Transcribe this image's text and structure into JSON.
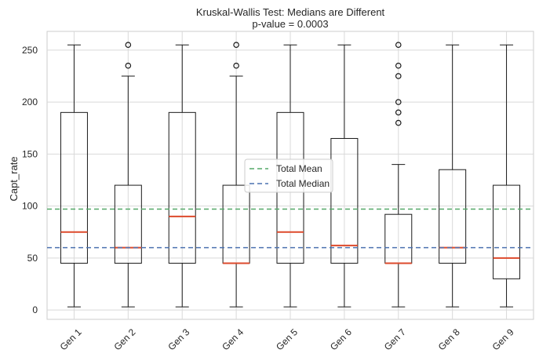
{
  "chart_data": {
    "type": "box",
    "title": "Kruskal-Wallis Test: Medians are Different",
    "subtitle": "p-value = 0.0003",
    "xlabel": "",
    "ylabel": "Capt_rate",
    "ylim": [
      -9,
      268
    ],
    "yticks": [
      0,
      50,
      100,
      150,
      200,
      250
    ],
    "categories": [
      "Gen 1",
      "Gen 2",
      "Gen 3",
      "Gen 4",
      "Gen 5",
      "Gen 6",
      "Gen 7",
      "Gen 8",
      "Gen 9"
    ],
    "boxes": [
      {
        "label": "Gen 1",
        "whisker_low": 3,
        "q1": 45,
        "median": 75,
        "q3": 190,
        "whisker_high": 255,
        "outliers": []
      },
      {
        "label": "Gen 2",
        "whisker_low": 3,
        "q1": 45,
        "median": 60,
        "q3": 120,
        "whisker_high": 225,
        "outliers": [
          235,
          255
        ]
      },
      {
        "label": "Gen 3",
        "whisker_low": 3,
        "q1": 45,
        "median": 90,
        "q3": 190,
        "whisker_high": 255,
        "outliers": []
      },
      {
        "label": "Gen 4",
        "whisker_low": 3,
        "q1": 45,
        "median": 45,
        "q3": 120,
        "whisker_high": 225,
        "outliers": [
          235,
          255
        ]
      },
      {
        "label": "Gen 5",
        "whisker_low": 3,
        "q1": 45,
        "median": 75,
        "q3": 190,
        "whisker_high": 255,
        "outliers": []
      },
      {
        "label": "Gen 6",
        "whisker_low": 3,
        "q1": 45,
        "median": 62,
        "q3": 165,
        "whisker_high": 255,
        "outliers": []
      },
      {
        "label": "Gen 7",
        "whisker_low": 3,
        "q1": 45,
        "median": 45,
        "q3": 92,
        "whisker_high": 140,
        "outliers": [
          180,
          190,
          200,
          225,
          235,
          255
        ]
      },
      {
        "label": "Gen 8",
        "whisker_low": 3,
        "q1": 45,
        "median": 60,
        "q3": 135,
        "whisker_high": 255,
        "outliers": []
      },
      {
        "label": "Gen 9",
        "whisker_low": 3,
        "q1": 30,
        "median": 50,
        "q3": 120,
        "whisker_high": 255,
        "outliers": []
      }
    ],
    "reference_lines": [
      {
        "name": "Total Mean",
        "value": 97,
        "color": "#55a868",
        "style": "dashed"
      },
      {
        "name": "Total Median",
        "value": 60,
        "color": "#4c72b0",
        "style": "dashed"
      }
    ],
    "legend_position": "center",
    "grid": true,
    "colors": {
      "median": "#dd4a2c",
      "box": "#1a1a1a",
      "grid": "#d9d9d9",
      "frame": "#cccccc"
    }
  }
}
